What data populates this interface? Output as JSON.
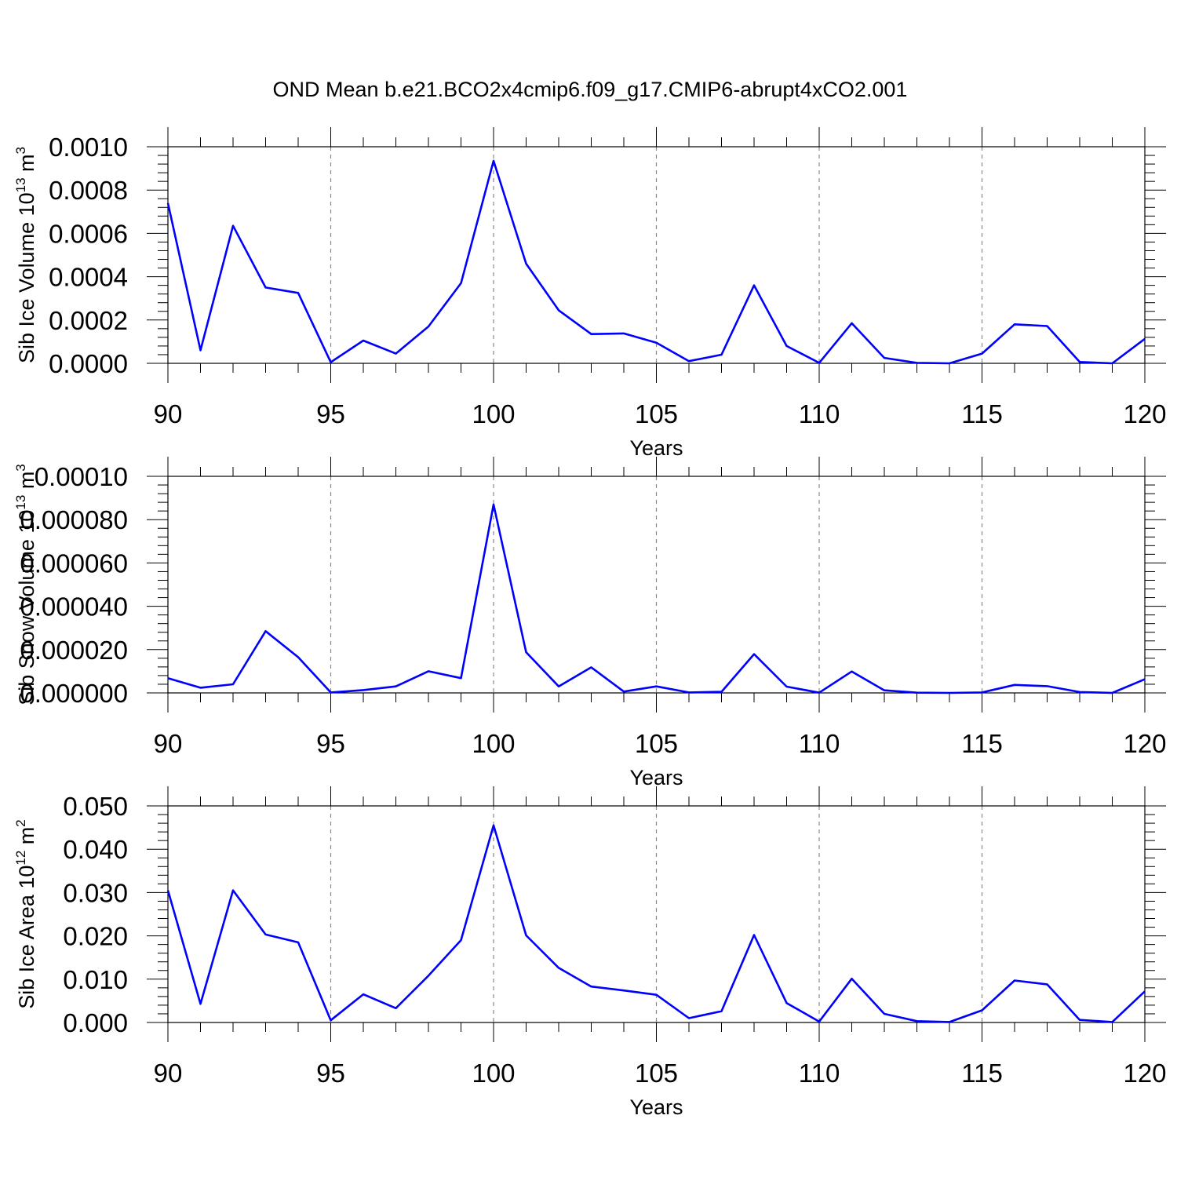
{
  "title": "OND Mean b.e21.BCO2x4cmip6.f09_g17.CMIP6-abrupt4xCO2.001",
  "line_color": "#0000ff",
  "chart_data": [
    {
      "type": "line",
      "title": "OND Mean b.e21.BCO2x4cmip6.f09_g17.CMIP6-abrupt4xCO2.001",
      "xlabel": "Years",
      "ylabel": "Sib Ice Volume 10",
      "ylabel_exp": "13",
      "ylabel_unit": " m",
      "ylabel_unit_exp": "3",
      "xlim": [
        90,
        120
      ],
      "ylim": [
        0,
        0.001
      ],
      "x_ticks": [
        "90",
        "95",
        "100",
        "105",
        "110",
        "115",
        "120"
      ],
      "y_ticks": [
        "0.0000",
        "0.0002",
        "0.0004",
        "0.0006",
        "0.0008",
        "0.0010"
      ],
      "grid": "vertical dashed at major x ticks",
      "x": [
        90,
        91,
        92,
        93,
        94,
        95,
        96,
        97,
        98,
        99,
        100,
        101,
        102,
        103,
        104,
        105,
        106,
        107,
        108,
        109,
        110,
        111,
        112,
        113,
        114,
        115,
        116,
        117,
        118,
        119,
        120
      ],
      "values": [
        0.00074,
        6e-05,
        0.000635,
        0.00035,
        0.000325,
        5e-06,
        0.000105,
        4.5e-05,
        0.00017,
        0.00037,
        0.000935,
        0.00046,
        0.000245,
        0.000135,
        0.000138,
        9.5e-05,
        1e-05,
        4e-05,
        0.00036,
        8e-05,
        2e-06,
        0.000185,
        2.5e-05,
        2e-06,
        0.0,
        4.5e-05,
        0.00018,
        0.000172,
        6e-06,
        0.0,
        0.000113
      ]
    },
    {
      "type": "line",
      "xlabel": "Years",
      "ylabel": "Sib Snow Volume 10",
      "ylabel_exp": "13",
      "ylabel_unit": " m",
      "ylabel_unit_exp": "3",
      "xlim": [
        90,
        120
      ],
      "ylim": [
        0,
        0.0001
      ],
      "x_ticks": [
        "90",
        "95",
        "100",
        "105",
        "110",
        "115",
        "120"
      ],
      "y_ticks": [
        "0.000000",
        "0.000020",
        "0.000040",
        "0.000060",
        "0.000080",
        "0.00010"
      ],
      "grid": "vertical dashed at major x ticks",
      "x": [
        90,
        91,
        92,
        93,
        94,
        95,
        96,
        97,
        98,
        99,
        100,
        101,
        102,
        103,
        104,
        105,
        106,
        107,
        108,
        109,
        110,
        111,
        112,
        113,
        114,
        115,
        116,
        117,
        118,
        119,
        120
      ],
      "values": [
        6.8e-06,
        2.4e-06,
        4e-06,
        2.85e-05,
        1.65e-05,
        2e-07,
        1.3e-06,
        3e-06,
        1e-05,
        6.8e-06,
        8.7e-05,
        1.88e-05,
        3e-06,
        1.18e-05,
        6e-07,
        3e-06,
        2e-07,
        5e-07,
        1.79e-05,
        2.9e-06,
        1e-07,
        9.9e-06,
        1.2e-06,
        1e-07,
        0.0,
        2e-07,
        3.7e-06,
        3.1e-06,
        4e-07,
        0.0,
        6.3e-06
      ]
    },
    {
      "type": "line",
      "xlabel": "Years",
      "ylabel": "Sib Ice Area 10",
      "ylabel_exp": "12",
      "ylabel_unit": " m",
      "ylabel_unit_exp": "2",
      "xlim": [
        90,
        120
      ],
      "ylim": [
        0,
        0.05
      ],
      "x_ticks": [
        "90",
        "95",
        "100",
        "105",
        "110",
        "115",
        "120"
      ],
      "y_ticks": [
        "0.000",
        "0.010",
        "0.020",
        "0.030",
        "0.040",
        "0.050"
      ],
      "grid": "vertical dashed at major x ticks",
      "x": [
        90,
        91,
        92,
        93,
        94,
        95,
        96,
        97,
        98,
        99,
        100,
        101,
        102,
        103,
        104,
        105,
        106,
        107,
        108,
        109,
        110,
        111,
        112,
        113,
        114,
        115,
        116,
        117,
        118,
        119,
        120
      ],
      "values": [
        0.0305,
        0.0043,
        0.0305,
        0.0203,
        0.0185,
        0.0005,
        0.0065,
        0.0033,
        0.0108,
        0.019,
        0.0455,
        0.0201,
        0.0126,
        0.0083,
        0.0074,
        0.0064,
        0.001,
        0.0026,
        0.0202,
        0.0045,
        0.0002,
        0.0101,
        0.002,
        0.0003,
        0.0001,
        0.0028,
        0.0097,
        0.0088,
        0.0006,
        0.0001,
        0.0072
      ]
    }
  ]
}
